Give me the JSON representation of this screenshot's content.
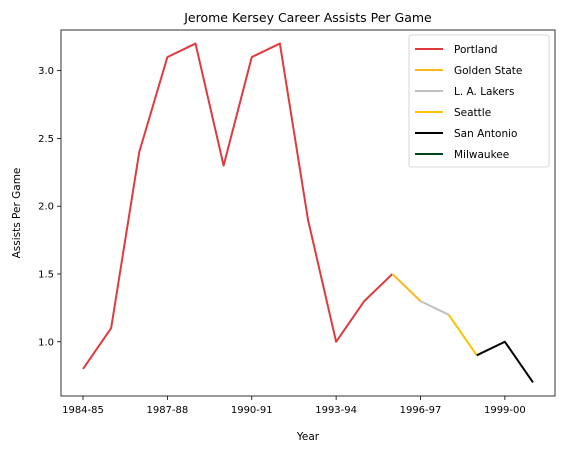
{
  "chart_data": {
    "type": "line",
    "title": "Jerome Kersey Career Assists Per Game",
    "xlabel": "Year",
    "ylabel": "Assists Per Game",
    "seasons": [
      "1984-85",
      "1985-86",
      "1986-87",
      "1987-88",
      "1988-89",
      "1989-90",
      "1990-91",
      "1991-92",
      "1992-93",
      "1993-94",
      "1994-95",
      "1995-96",
      "1996-97",
      "1997-98",
      "1998-99",
      "1999-00",
      "2000-01"
    ],
    "x_ticks": [
      "1984-85",
      "1987-88",
      "1990-91",
      "1993-94",
      "1996-97",
      "1999-00"
    ],
    "y_ticks": [
      "1.0",
      "1.5",
      "2.0",
      "2.5",
      "3.0"
    ],
    "ylim": [
      0.6,
      3.3
    ],
    "grid": false,
    "legend_position": "top-right",
    "series": [
      {
        "name": "Portland",
        "color": "#E03A3E",
        "x": [
          "1984-85",
          "1985-86",
          "1986-87",
          "1987-88",
          "1988-89",
          "1989-90",
          "1990-91",
          "1991-92",
          "1992-93",
          "1993-94",
          "1994-95",
          "1995-96"
        ],
        "values": [
          0.8,
          1.1,
          2.4,
          3.1,
          3.2,
          2.3,
          3.1,
          3.2,
          1.9,
          1.0,
          1.3,
          1.5
        ]
      },
      {
        "name": "Golden State",
        "color": "#FFB81C",
        "x": [
          "1995-96",
          "1996-97"
        ],
        "values": [
          1.5,
          1.3
        ]
      },
      {
        "name": "L. A. Lakers",
        "color": "#BEC0C2",
        "x": [
          "1996-97",
          "1997-98"
        ],
        "values": [
          1.3,
          1.2
        ]
      },
      {
        "name": "Seattle",
        "color": "#FFC200",
        "x": [
          "1997-98",
          "1998-99"
        ],
        "values": [
          1.2,
          0.9
        ]
      },
      {
        "name": "San Antonio",
        "color": "#000000",
        "x": [
          "1998-99",
          "1999-00",
          "2000-01"
        ],
        "values": [
          0.9,
          1.0,
          0.7
        ]
      },
      {
        "name": "Milwaukee",
        "color": "#00471B",
        "x": [],
        "values": []
      }
    ]
  }
}
